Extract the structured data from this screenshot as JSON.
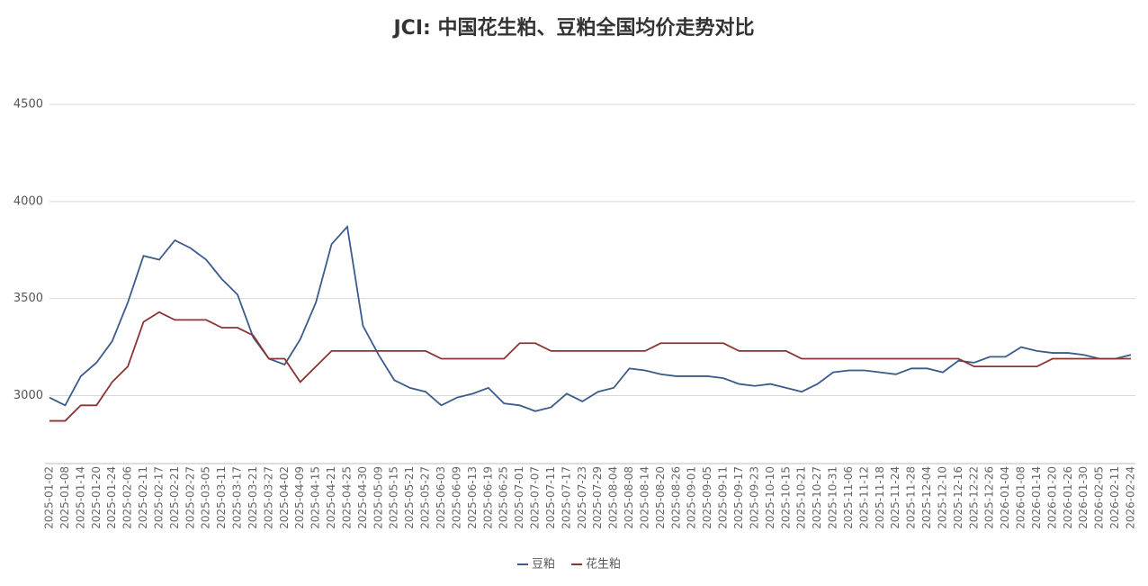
{
  "chart_data": {
    "type": "line",
    "title": "JCI: 中国花生粕、豆粕全国均价走势对比",
    "categories": [
      "2025-01-02",
      "2025-01-08",
      "2025-01-14",
      "2025-01-20",
      "2025-01-24",
      "2025-02-06",
      "2025-02-11",
      "2025-02-17",
      "2025-02-21",
      "2025-02-27",
      "2025-03-05",
      "2025-03-11",
      "2025-03-17",
      "2025-03-21",
      "2025-03-27",
      "2025-04-02",
      "2025-04-09",
      "2025-04-15",
      "2025-04-21",
      "2025-04-25",
      "2025-04-30",
      "2025-05-09",
      "2025-05-15",
      "2025-05-21",
      "2025-05-27",
      "2025-06-03",
      "2025-06-09",
      "2025-06-13",
      "2025-06-19",
      "2025-06-25",
      "2025-07-01",
      "2025-07-07",
      "2025-07-11",
      "2025-07-17",
      "2025-07-23",
      "2025-07-29",
      "2025-08-04",
      "2025-08-08",
      "2025-08-14",
      "2025-08-20",
      "2025-08-26",
      "2025-09-01",
      "2025-09-05",
      "2025-09-11",
      "2025-09-17",
      "2025-09-23",
      "2025-10-10",
      "2025-10-15",
      "2025-10-21",
      "2025-10-27",
      "2025-10-31",
      "2025-11-06",
      "2025-11-12",
      "2025-11-18",
      "2025-11-24",
      "2025-11-28",
      "2025-12-04",
      "2025-12-10",
      "2025-12-16",
      "2025-12-22",
      "2025-12-26",
      "2026-01-04",
      "2026-01-08",
      "2026-01-14",
      "2026-01-20",
      "2026-01-26",
      "2026-01-30",
      "2026-02-05",
      "2026-02-11",
      "2026-02-24"
    ],
    "series": [
      {
        "name": "豆粕",
        "color": "#3a5b8c",
        "values": [
          2990,
          2950,
          3100,
          3170,
          3280,
          3480,
          3720,
          3700,
          3800,
          3760,
          3700,
          3600,
          3520,
          3300,
          3190,
          3160,
          3290,
          3480,
          3780,
          3870,
          3360,
          3210,
          3080,
          3040,
          3020,
          2950,
          2990,
          3010,
          3040,
          2960,
          2950,
          2920,
          2940,
          3010,
          2970,
          3020,
          3040,
          3140,
          3130,
          3110,
          3100,
          3100,
          3100,
          3090,
          3060,
          3050,
          3060,
          3040,
          3020,
          3060,
          3120,
          3130,
          3130,
          3120,
          3110,
          3140,
          3140,
          3120,
          3180,
          3170,
          3200,
          3200,
          3250,
          3230,
          3220,
          3220,
          3210,
          3190,
          3190,
          3210
        ]
      },
      {
        "name": "花生粕",
        "color": "#8c3333",
        "values": [
          2870,
          2870,
          2950,
          2950,
          3070,
          3150,
          3380,
          3430,
          3390,
          3390,
          3390,
          3350,
          3350,
          3310,
          3190,
          3190,
          3070,
          3150,
          3230,
          3230,
          3230,
          3230,
          3230,
          3230,
          3230,
          3190,
          3190,
          3190,
          3190,
          3190,
          3270,
          3270,
          3230,
          3230,
          3230,
          3230,
          3230,
          3230,
          3230,
          3270,
          3270,
          3270,
          3270,
          3270,
          3230,
          3230,
          3230,
          3230,
          3190,
          3190,
          3190,
          3190,
          3190,
          3190,
          3190,
          3190,
          3190,
          3190,
          3190,
          3150,
          3150,
          3150,
          3150,
          3150,
          3190,
          3190,
          3190,
          3190,
          3190,
          3190
        ]
      }
    ],
    "ylim": [
      2650,
      4500
    ],
    "yticks": [
      3000,
      3500,
      4000,
      4500
    ],
    "grid": true
  }
}
